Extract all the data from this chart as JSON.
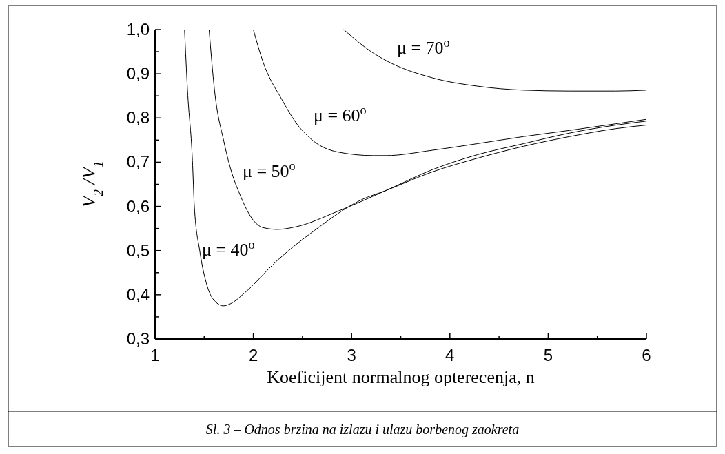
{
  "chart_data": {
    "type": "line",
    "xlabel": "Koeficijent normalnog opterecenja, n",
    "ylabel": "V$_{2}$ /V$_{1}$",
    "xlim": [
      1,
      6
    ],
    "ylim": [
      0.3,
      1.0
    ],
    "xticks": [
      1,
      {
        "value": 1.5,
        "label": null
      },
      2,
      {
        "value": 2.5,
        "label": null
      },
      3,
      {
        "value": 3.5,
        "label": null
      },
      4,
      {
        "value": 4.5,
        "label": null
      },
      5,
      {
        "value": 5.5,
        "label": null
      },
      6
    ],
    "yticks": [
      {
        "value": 0.3,
        "label": "0,3"
      },
      {
        "value": 0.35,
        "label": null
      },
      {
        "value": 0.4,
        "label": "0,4"
      },
      {
        "value": 0.45,
        "label": null
      },
      {
        "value": 0.5,
        "label": "0,5"
      },
      {
        "value": 0.55,
        "label": null
      },
      {
        "value": 0.6,
        "label": "0,6"
      },
      {
        "value": 0.65,
        "label": null
      },
      {
        "value": 0.7,
        "label": "0,7"
      },
      {
        "value": 0.75,
        "label": null
      },
      {
        "value": 0.8,
        "label": "0,8"
      },
      {
        "value": 0.85,
        "label": null
      },
      {
        "value": 0.9,
        "label": "0,9"
      },
      {
        "value": 0.95,
        "label": null
      },
      {
        "value": 1.0,
        "label": "1,0"
      }
    ],
    "grid": false,
    "marker": "none",
    "line_style": "solid",
    "series": [
      {
        "name": "μ = 40$^{o}$",
        "color": "#000000",
        "x": [
          1.3,
          1.33,
          1.38,
          1.4,
          1.455,
          1.53,
          1.62,
          1.695,
          1.77,
          1.91,
          2.245,
          2.625,
          3.1,
          3.35,
          3.82,
          4.28,
          4.75,
          5.22,
          5.69,
          6.0
        ],
        "values": [
          1.0,
          0.863,
          0.705,
          0.599,
          0.499,
          0.42,
          0.383,
          0.375,
          0.38,
          0.404,
          0.478,
          0.546,
          0.615,
          0.636,
          0.678,
          0.709,
          0.736,
          0.758,
          0.776,
          0.784
        ]
      },
      {
        "name": "μ = 50$^{o}$",
        "color": "#000000",
        "x": [
          1.55,
          1.605,
          1.7,
          1.77,
          1.865,
          1.985,
          2.1,
          2.245,
          2.435,
          2.86,
          3.35,
          3.82,
          4.28,
          4.75,
          5.22,
          5.69,
          6.0
        ],
        "values": [
          1.0,
          0.863,
          0.747,
          0.684,
          0.626,
          0.573,
          0.552,
          0.548,
          0.554,
          0.589,
          0.636,
          0.683,
          0.717,
          0.742,
          0.766,
          0.784,
          0.793
        ]
      },
      {
        "name": "μ = 60$^{o}$",
        "color": "#000000",
        "x": [
          2.0,
          2.1,
          2.29,
          2.435,
          2.6,
          2.86,
          3.22,
          3.35,
          3.82,
          4.28,
          4.75,
          5.22,
          5.69,
          6.0
        ],
        "values": [
          1.0,
          0.926,
          0.842,
          0.789,
          0.75,
          0.723,
          0.715,
          0.715,
          0.727,
          0.742,
          0.758,
          0.772,
          0.787,
          0.797
        ]
      },
      {
        "name": "μ = 70$^{o}$",
        "color": "#000000",
        "x": [
          2.92,
          3.22,
          3.35,
          3.82,
          4.28,
          4.75,
          5.22,
          5.69,
          6.0
        ],
        "values": [
          1.0,
          0.947,
          0.93,
          0.891,
          0.872,
          0.863,
          0.861,
          0.861,
          0.863
        ]
      }
    ],
    "annotations": [
      "Sl. 3 – Odnos brzina na izlazu i ulazu borbenog zaokreta"
    ]
  }
}
